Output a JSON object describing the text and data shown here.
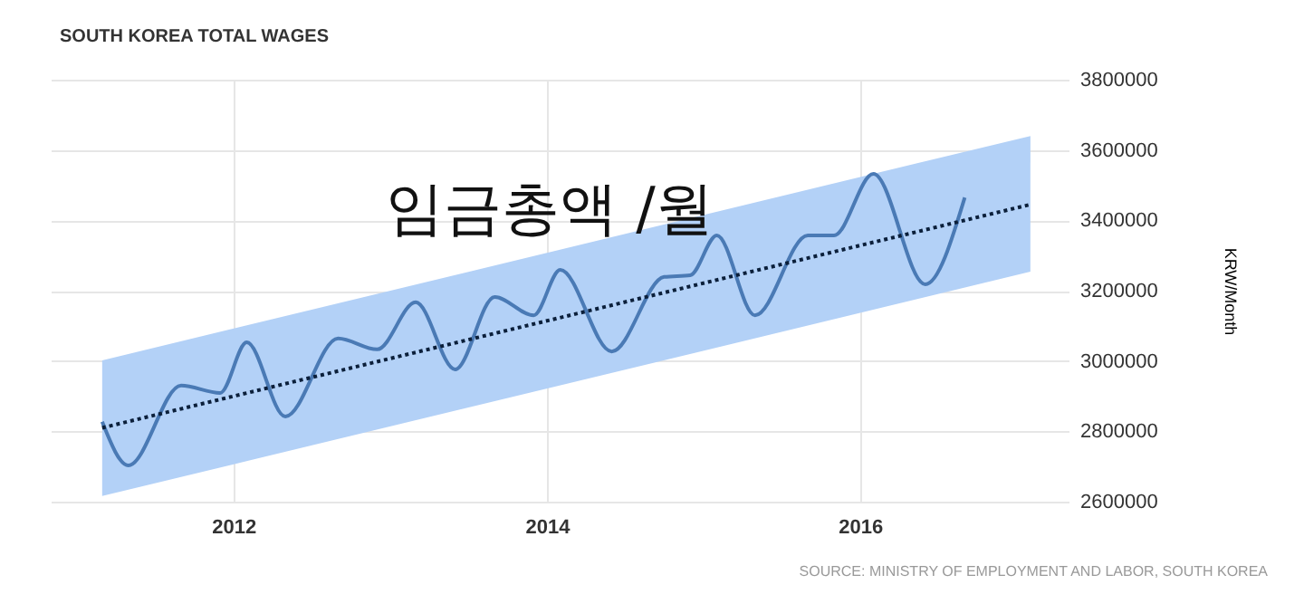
{
  "chart_data": {
    "type": "line",
    "title": "SOUTH KOREA TOTAL WAGES",
    "ylabel": "KRW/Month",
    "annotations": [
      "임금총액 /월",
      "SOURCE: MINISTRY OF EMPLOYMENT AND LABOR, SOUTH KOREA"
    ],
    "xlim": [
      "2010-11",
      "2017-05"
    ],
    "xticks": [
      "2012",
      "2014",
      "2016"
    ],
    "ylim": [
      2600000,
      3800000
    ],
    "yticks": [
      2600000,
      2800000,
      3000000,
      3200000,
      3400000,
      3600000,
      3800000
    ],
    "grid": true,
    "series": [
      {
        "color": "#4a7ab5",
        "x": [
          "2011-03",
          "2011-05",
          "2011-09",
          "2011-12",
          "2012-02",
          "2012-05",
          "2012-09",
          "2012-12",
          "2013-03",
          "2013-06",
          "2013-09",
          "2013-12",
          "2014-02",
          "2014-06",
          "2014-10",
          "2014-12",
          "2015-02",
          "2015-05",
          "2015-09",
          "2015-11",
          "2016-02",
          "2016-06",
          "2016-09"
        ],
        "values": [
          2827000,
          2703000,
          2930000,
          2909000,
          3053000,
          2842000,
          3064000,
          3033000,
          3167000,
          2976000,
          3182000,
          3130000,
          3259000,
          3027000,
          3239000,
          3244000,
          3357000,
          3130000,
          3357000,
          3357000,
          3532000,
          3218000,
          3465000
        ]
      },
      {
        "type": "line",
        "color": "#0b1f3a",
        "line_style": "dotted",
        "x": [
          "2011-03",
          "2017-02"
        ],
        "values": [
          2810000,
          3445000
        ],
        "lower": [
          2616000,
          3254000
        ],
        "upper": [
          3002000,
          3640000
        ]
      }
    ]
  }
}
